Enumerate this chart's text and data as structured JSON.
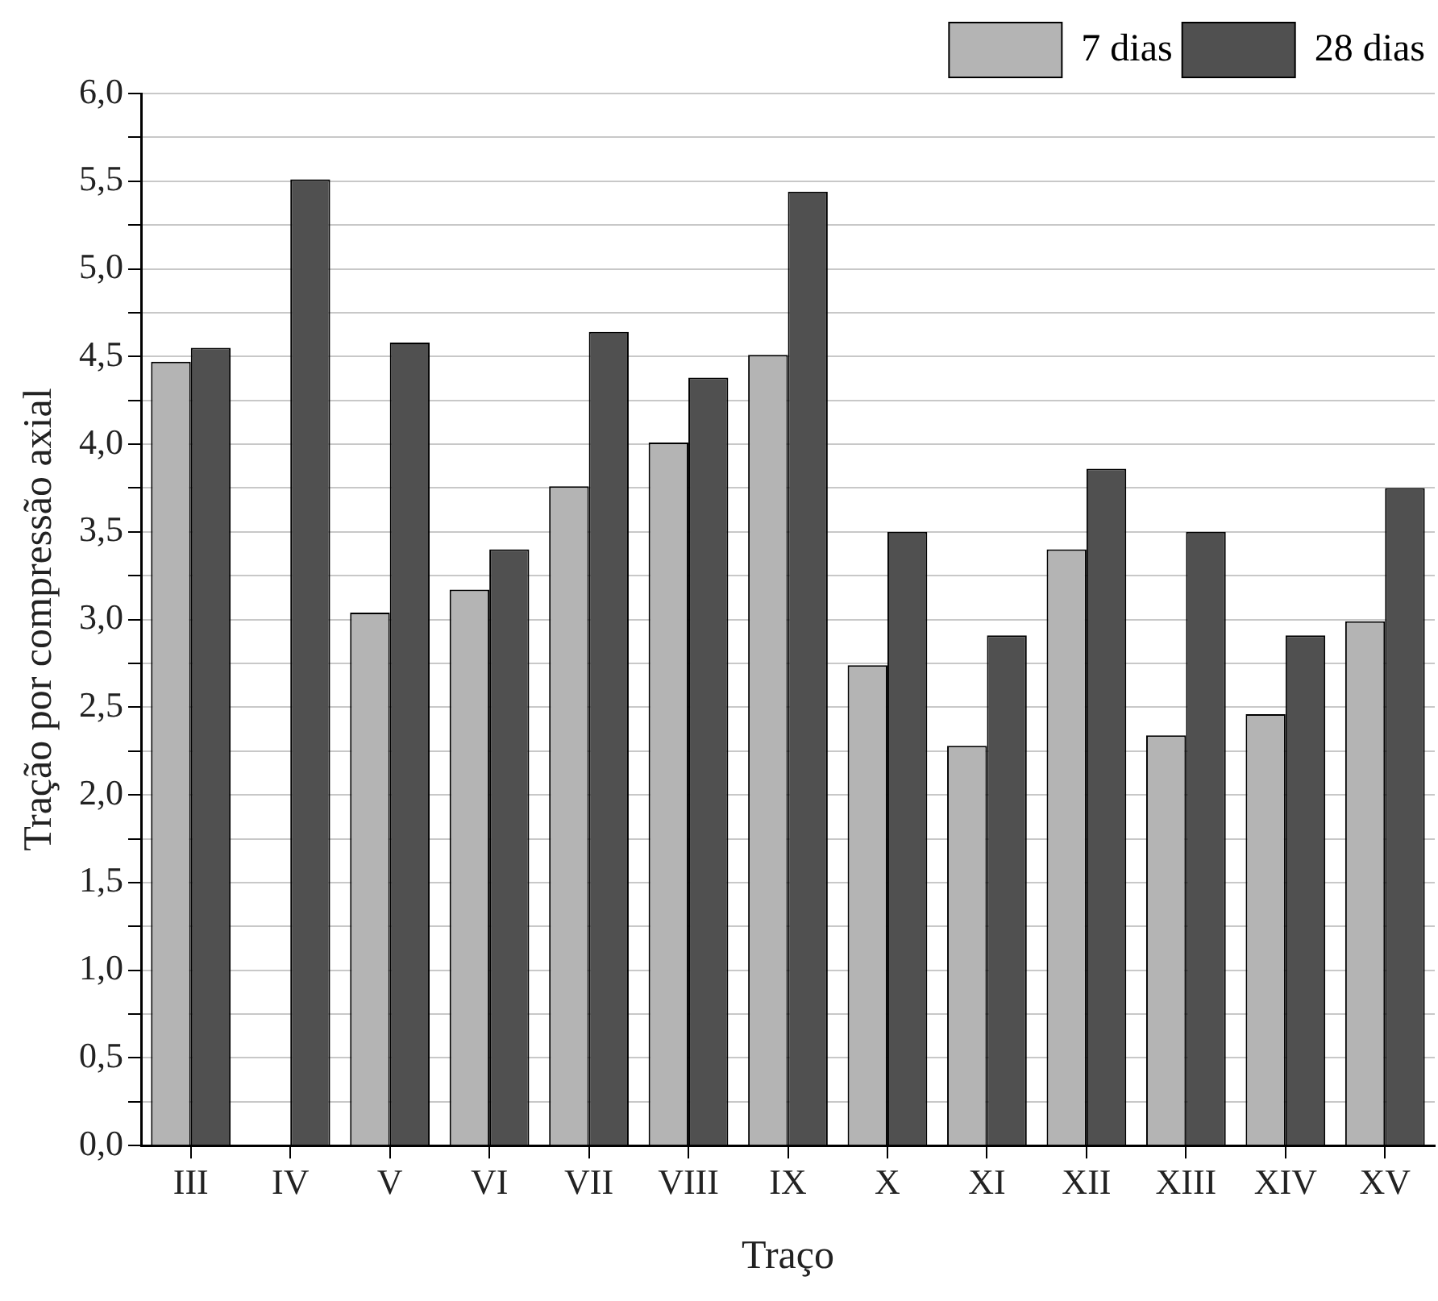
{
  "chart_data": {
    "type": "bar",
    "xlabel": "Traço",
    "ylabel": "Tração por compressão axial",
    "categories": [
      "III",
      "IV",
      "V",
      "VI",
      "VII",
      "VIII",
      "IX",
      "X",
      "XI",
      "XII",
      "XIII",
      "XIV",
      "XV"
    ],
    "series": [
      {
        "name": "7 dias",
        "color": "#b4b4b4",
        "values": [
          4.47,
          null,
          3.04,
          3.17,
          3.76,
          4.01,
          4.51,
          2.74,
          2.28,
          3.4,
          2.34,
          2.46,
          2.99
        ]
      },
      {
        "name": "28 dias",
        "color": "#505050",
        "values": [
          4.55,
          5.51,
          4.58,
          3.4,
          4.64,
          4.38,
          5.44,
          3.5,
          2.91,
          3.86,
          3.5,
          2.91,
          3.75
        ]
      }
    ],
    "ylim": [
      0,
      6
    ],
    "yticks": [
      {
        "value": 0,
        "label": "0,0"
      },
      {
        "value": 0.25,
        "label": null
      },
      {
        "value": 0.5,
        "label": "0,5"
      },
      {
        "value": 0.75,
        "label": null
      },
      {
        "value": 1,
        "label": "1,0"
      },
      {
        "value": 1.25,
        "label": null
      },
      {
        "value": 1.5,
        "label": "1,5"
      },
      {
        "value": 1.75,
        "label": null
      },
      {
        "value": 2,
        "label": "2,0"
      },
      {
        "value": 2.25,
        "label": null
      },
      {
        "value": 2.5,
        "label": "2,5"
      },
      {
        "value": 2.75,
        "label": null
      },
      {
        "value": 3,
        "label": "3,0"
      },
      {
        "value": 3.25,
        "label": null
      },
      {
        "value": 3.5,
        "label": "3,5"
      },
      {
        "value": 3.75,
        "label": null
      },
      {
        "value": 4,
        "label": "4,0"
      },
      {
        "value": 4.25,
        "label": null
      },
      {
        "value": 4.5,
        "label": "4,5"
      },
      {
        "value": 4.75,
        "label": null
      },
      {
        "value": 5,
        "label": "5,0"
      },
      {
        "value": 5.25,
        "label": null
      },
      {
        "value": 5.5,
        "label": "5,5"
      },
      {
        "value": 5.75,
        "label": null
      },
      {
        "value": 6,
        "label": "6,0"
      }
    ],
    "grid": "y",
    "legend": "top right"
  }
}
